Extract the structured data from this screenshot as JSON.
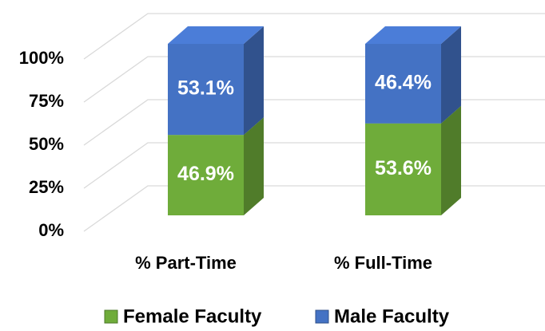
{
  "chart_data": {
    "type": "bar",
    "stacked": true,
    "categories": [
      "% Part-Time",
      "% Full-Time"
    ],
    "series": [
      {
        "name": "Female Faculty",
        "color": "#6fac3a",
        "values": [
          46.9,
          53.6
        ],
        "value_labels": [
          "46.9%",
          "53.6%"
        ]
      },
      {
        "name": "Male Faculty",
        "color": "#4472c4",
        "values": [
          53.1,
          46.4
        ],
        "value_labels": [
          "53.1%",
          "46.4%"
        ]
      }
    ],
    "ylim": [
      0,
      100
    ],
    "yticks": [
      {
        "value": 0,
        "label": "0%"
      },
      {
        "value": 25,
        "label": "25%"
      },
      {
        "value": 50,
        "label": "50%"
      },
      {
        "value": 75,
        "label": "75%"
      },
      {
        "value": 100,
        "label": "100%"
      }
    ],
    "grid": true,
    "legend": "bottom"
  }
}
